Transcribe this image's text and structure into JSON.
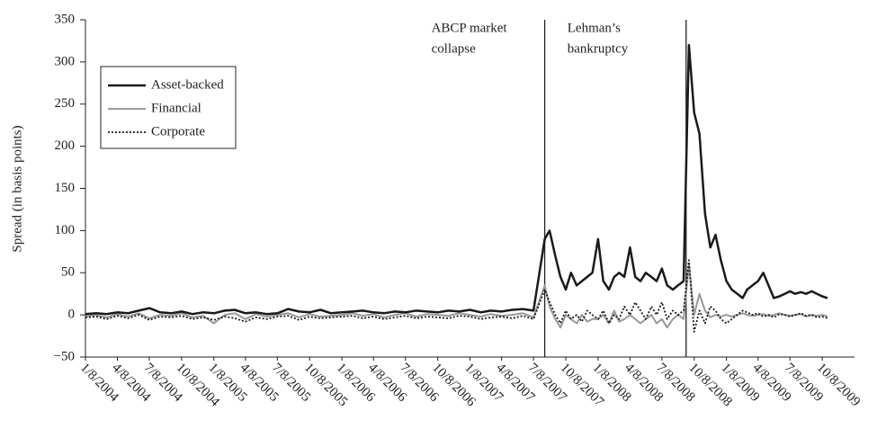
{
  "chart_data": {
    "type": "line",
    "ylabel": "Spread (in basis points)",
    "x": [
      "1/8/2004",
      "2/8/2004",
      "3/8/2004",
      "4/8/2004",
      "5/8/2004",
      "6/8/2004",
      "7/8/2004",
      "8/8/2004",
      "9/8/2004",
      "10/8/2004",
      "11/8/2004",
      "12/8/2004",
      "1/8/2005",
      "2/8/2005",
      "3/8/2005",
      "4/8/2005",
      "5/8/2005",
      "6/8/2005",
      "7/8/2005",
      "8/8/2005",
      "9/8/2005",
      "10/8/2005",
      "11/8/2005",
      "12/8/2005",
      "1/8/2006",
      "2/8/2006",
      "3/8/2006",
      "4/8/2006",
      "5/8/2006",
      "6/8/2006",
      "7/8/2006",
      "8/8/2006",
      "9/8/2006",
      "10/8/2006",
      "11/8/2006",
      "12/8/2006",
      "1/8/2007",
      "2/8/2007",
      "3/8/2007",
      "4/8/2007",
      "5/8/2007",
      "6/8/2007",
      "7/8/2007",
      "8/9/2007",
      "8/23/2007",
      "9/8/2007",
      "9/23/2007",
      "10/8/2007",
      "10/23/2007",
      "11/8/2007",
      "11/23/2007",
      "12/8/2007",
      "12/23/2007",
      "1/8/2008",
      "1/23/2008",
      "2/8/2008",
      "2/23/2008",
      "3/8/2008",
      "3/23/2008",
      "4/8/2008",
      "4/23/2008",
      "5/8/2008",
      "5/23/2008",
      "6/8/2008",
      "6/23/2008",
      "7/8/2008",
      "7/23/2008",
      "8/8/2008",
      "8/23/2008",
      "9/8/2008",
      "9/23/2008",
      "10/8/2008",
      "10/23/2008",
      "11/8/2008",
      "11/23/2008",
      "12/8/2008",
      "12/23/2008",
      "1/8/2009",
      "1/23/2009",
      "2/8/2009",
      "2/23/2009",
      "3/8/2009",
      "3/23/2009",
      "4/8/2009",
      "4/23/2009",
      "5/8/2009",
      "5/23/2009",
      "6/8/2009",
      "6/23/2009",
      "7/8/2009",
      "7/23/2009",
      "8/8/2009",
      "8/23/2009",
      "9/8/2009",
      "9/23/2009",
      "10/8/2009",
      "10/23/2009"
    ],
    "series": [
      {
        "name": "Asset-backed",
        "color": "#1a1a1a",
        "width": 2.5,
        "dash": "none",
        "values": [
          1,
          2,
          1,
          3,
          2,
          5,
          8,
          3,
          2,
          4,
          1,
          3,
          2,
          5,
          6,
          2,
          3,
          1,
          2,
          7,
          4,
          3,
          6,
          2,
          3,
          4,
          5,
          3,
          2,
          4,
          3,
          5,
          4,
          3,
          5,
          4,
          6,
          3,
          5,
          4,
          6,
          7,
          5,
          90,
          100,
          70,
          45,
          30,
          50,
          35,
          40,
          45,
          50,
          90,
          40,
          30,
          45,
          50,
          45,
          80,
          45,
          40,
          50,
          45,
          40,
          55,
          35,
          30,
          35,
          40,
          320,
          240,
          215,
          120,
          80,
          95,
          65,
          40,
          30,
          25,
          20,
          30,
          35,
          40,
          50,
          35,
          20,
          22,
          25,
          28,
          25,
          27,
          25,
          28,
          25,
          22,
          20
        ]
      },
      {
        "name": "Financial",
        "color": "#999999",
        "width": 2,
        "dash": "none",
        "values": [
          -2,
          0,
          -3,
          1,
          -2,
          2,
          -4,
          0,
          -1,
          2,
          -3,
          -1,
          -10,
          0,
          2,
          -5,
          1,
          -2,
          0,
          2,
          -3,
          1,
          -2,
          -1,
          0,
          2,
          -1,
          1,
          -3,
          0,
          2,
          -2,
          1,
          0,
          -1,
          2,
          0,
          -2,
          1,
          -1,
          0,
          2,
          -3,
          35,
          10,
          -5,
          -15,
          0,
          -5,
          -10,
          0,
          -8,
          -5,
          -5,
          0,
          -10,
          5,
          -8,
          -5,
          0,
          -5,
          -10,
          -5,
          0,
          -10,
          -5,
          -15,
          -5,
          0,
          -5,
          60,
          0,
          25,
          5,
          -3,
          0,
          -2,
          0,
          -2,
          0,
          2,
          0,
          -1,
          0,
          1,
          -1,
          0,
          2,
          0,
          -1,
          0,
          1,
          -2,
          0,
          -1,
          0,
          -2
        ]
      },
      {
        "name": "Corporate",
        "color": "#1a1a1a",
        "width": 1.8,
        "dash": "2,2",
        "values": [
          -3,
          -2,
          -5,
          -1,
          -4,
          0,
          -6,
          -2,
          -3,
          -1,
          -5,
          -3,
          -6,
          -2,
          -4,
          -8,
          -3,
          -5,
          -2,
          -1,
          -6,
          -2,
          -4,
          -3,
          -2,
          -1,
          -4,
          -2,
          -5,
          -3,
          -1,
          -4,
          -2,
          -3,
          -4,
          -1,
          -2,
          -5,
          -3,
          -2,
          -4,
          -1,
          -5,
          30,
          15,
          0,
          -10,
          5,
          -5,
          0,
          -8,
          5,
          0,
          -5,
          5,
          -10,
          0,
          -5,
          10,
          0,
          15,
          5,
          -5,
          10,
          0,
          15,
          -5,
          5,
          0,
          5,
          65,
          -20,
          5,
          -10,
          10,
          5,
          -5,
          -10,
          -5,
          0,
          5,
          3,
          0,
          2,
          -2,
          0,
          -3,
          1,
          0,
          -2,
          0,
          2,
          -1,
          0,
          -3,
          -2,
          -4
        ]
      }
    ],
    "xlim": [
      "1/8/2004",
      "1/8/2010"
    ],
    "xticks": [
      "1/8/2004",
      "4/8/2004",
      "7/8/2004",
      "10/8/2004",
      "1/8/2005",
      "4/8/2005",
      "7/8/2005",
      "10/8/2005",
      "1/8/2006",
      "4/8/2006",
      "7/8/2006",
      "10/8/2006",
      "1/8/2007",
      "4/8/2007",
      "7/8/2007",
      "10/8/2007",
      "1/8/2008",
      "4/8/2008",
      "7/8/2008",
      "10/8/2008",
      "1/8/2009",
      "4/8/2009",
      "7/8/2009",
      "10/8/2009"
    ],
    "ylim": [
      -50,
      350
    ],
    "yticks": [
      {
        "value": -50,
        "label": "−50"
      },
      0,
      50,
      100,
      150,
      200,
      250,
      300,
      350
    ],
    "annotations": [
      {
        "lines": [
          "ABCP market",
          "collapse"
        ],
        "x": "8/9/2007"
      },
      {
        "lines": [
          "Lehman’s",
          "bankruptcy"
        ],
        "x": "9/15/2008"
      }
    ],
    "legend": "upper left",
    "grid": false
  }
}
